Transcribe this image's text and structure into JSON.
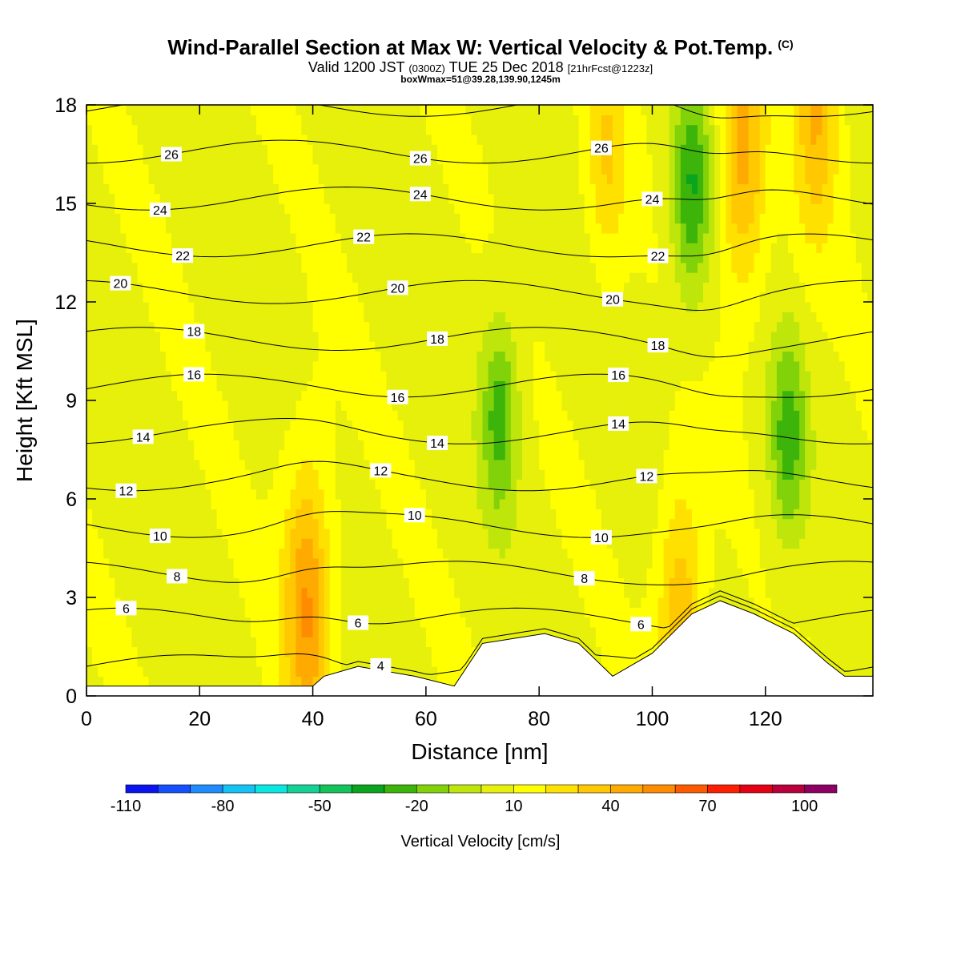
{
  "header": {
    "title": "Wind-Parallel Section at Max W: Vertical Velocity & Pot.Temp.",
    "title_mark": "(C)",
    "valid_prefix": "Valid 1200 JST",
    "valid_utc": "(0300Z)",
    "valid_date": "TUE 25 Dec 2018",
    "forecast_tag": "[21hrFcst@1223z]",
    "box_info": "boxWmax=51@39.28,139.90,1245m"
  },
  "chart_data": {
    "type": "heatmap",
    "xlabel": "Distance [nm]",
    "ylabel": "Height [Kft MSL]",
    "xlim": [
      0,
      139
    ],
    "ylim": [
      0,
      18
    ],
    "x_ticks": [
      "0",
      "20",
      "40",
      "60",
      "80",
      "100",
      "120"
    ],
    "x_tick_values": [
      0,
      20,
      40,
      60,
      80,
      100,
      120
    ],
    "y_ticks": [
      "0",
      "3",
      "6",
      "9",
      "12",
      "15",
      "18"
    ],
    "y_tick_values": [
      0,
      3,
      6,
      9,
      12,
      15,
      18
    ],
    "colorbar": {
      "title": "Vertical Velocity [cm/s]",
      "labels": [
        "-110",
        "-80",
        "-50",
        "-20",
        "10",
        "40",
        "70",
        "100"
      ],
      "label_values": [
        -110,
        -80,
        -50,
        -20,
        10,
        40,
        70,
        100
      ],
      "bin_edges": [
        -110,
        -100,
        -90,
        -80,
        -70,
        -60,
        -50,
        -40,
        -30,
        -20,
        -10,
        0,
        10,
        20,
        30,
        40,
        50,
        60,
        70,
        80,
        90,
        100,
        110
      ],
      "colors": [
        "#0a14f0",
        "#1450ff",
        "#1e8cff",
        "#14c3f5",
        "#0ae6e1",
        "#14d296",
        "#14c35a",
        "#0aa51e",
        "#3cb40a",
        "#82d20a",
        "#bee60a",
        "#e6f00a",
        "#ffff00",
        "#ffe100",
        "#ffc800",
        "#ffaa00",
        "#ff8c00",
        "#ff5a00",
        "#ff1e00",
        "#e60014",
        "#b9003c",
        "#8c0064",
        "#5a008c"
      ]
    },
    "contours": {
      "variable": "Potential temperature",
      "levels": [
        4,
        6,
        8,
        10,
        12,
        14,
        16,
        18,
        20,
        22,
        24,
        26,
        28
      ]
    },
    "velocity_features": [
      {
        "x": 39,
        "y": 2.7,
        "value": 51
      },
      {
        "x": 107,
        "y": 15.5,
        "value": -30
      },
      {
        "x": 73,
        "y": 8.5,
        "value": -25
      },
      {
        "x": 124,
        "y": 7.8,
        "value": -25
      },
      {
        "x": 116,
        "y": 16.5,
        "value": 45
      },
      {
        "x": 129,
        "y": 17.8,
        "value": 40
      },
      {
        "x": 92,
        "y": 16.5,
        "value": 30
      },
      {
        "x": 105,
        "y": 2.5,
        "value": 40
      }
    ],
    "terrain": [
      {
        "x": 0,
        "h": 0.3
      },
      {
        "x": 40,
        "h": 0.3
      },
      {
        "x": 42,
        "h": 0.6
      },
      {
        "x": 48,
        "h": 0.9
      },
      {
        "x": 58,
        "h": 0.6
      },
      {
        "x": 65,
        "h": 0.3
      },
      {
        "x": 70,
        "h": 1.6
      },
      {
        "x": 81,
        "h": 1.9
      },
      {
        "x": 87,
        "h": 1.6
      },
      {
        "x": 93,
        "h": 0.6
      },
      {
        "x": 100,
        "h": 1.3
      },
      {
        "x": 107,
        "h": 2.5
      },
      {
        "x": 112,
        "h": 2.9
      },
      {
        "x": 118,
        "h": 2.5
      },
      {
        "x": 125,
        "h": 1.9
      },
      {
        "x": 131,
        "h": 1.0
      },
      {
        "x": 134,
        "h": 0.6
      },
      {
        "x": 139,
        "h": 0.6
      }
    ]
  }
}
